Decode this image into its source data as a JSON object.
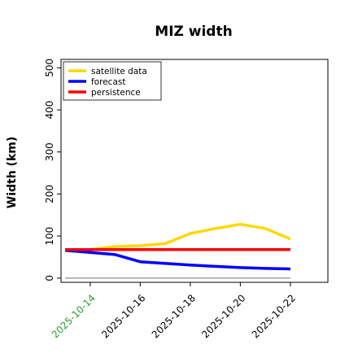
{
  "chart_data": {
    "type": "line",
    "title": "MIZ width",
    "xlabel": "",
    "ylabel": "Width (km)",
    "ylim": [
      -10,
      520
    ],
    "yticks": [
      0,
      100,
      200,
      300,
      400,
      500
    ],
    "xlim": [
      "2025-10-12T20:00",
      "2025-10-23T12:00"
    ],
    "xticks": [
      "2025-10-14",
      "2025-10-16",
      "2025-10-18",
      "2025-10-20",
      "2025-10-22"
    ],
    "xtick_colors": [
      "#2ca02c",
      "#000000",
      "#000000",
      "#000000",
      "#000000"
    ],
    "x": [
      "2025-10-13",
      "2025-10-14",
      "2025-10-15",
      "2025-10-16",
      "2025-10-17",
      "2025-10-18",
      "2025-10-19",
      "2025-10-20",
      "2025-10-21",
      "2025-10-22"
    ],
    "series": [
      {
        "name": "satellite data",
        "color": "#ffd700",
        "values": [
          66,
          68,
          75,
          77,
          82,
          106,
          118,
          128,
          118,
          93
        ]
      },
      {
        "name": "forecast",
        "color": "#0000ff",
        "values": [
          66,
          61,
          56,
          39,
          35,
          31,
          28,
          25,
          23,
          22
        ]
      },
      {
        "name": "persistence",
        "color": "#ff0000",
        "values": [
          68,
          68,
          68,
          68,
          68,
          68,
          68,
          68,
          68,
          68
        ]
      }
    ],
    "reference_line": {
      "color": "#808080",
      "value": 0,
      "x_range": [
        "2025-10-13",
        "2025-10-22"
      ]
    },
    "legend_position": "top-left",
    "grid": false
  }
}
